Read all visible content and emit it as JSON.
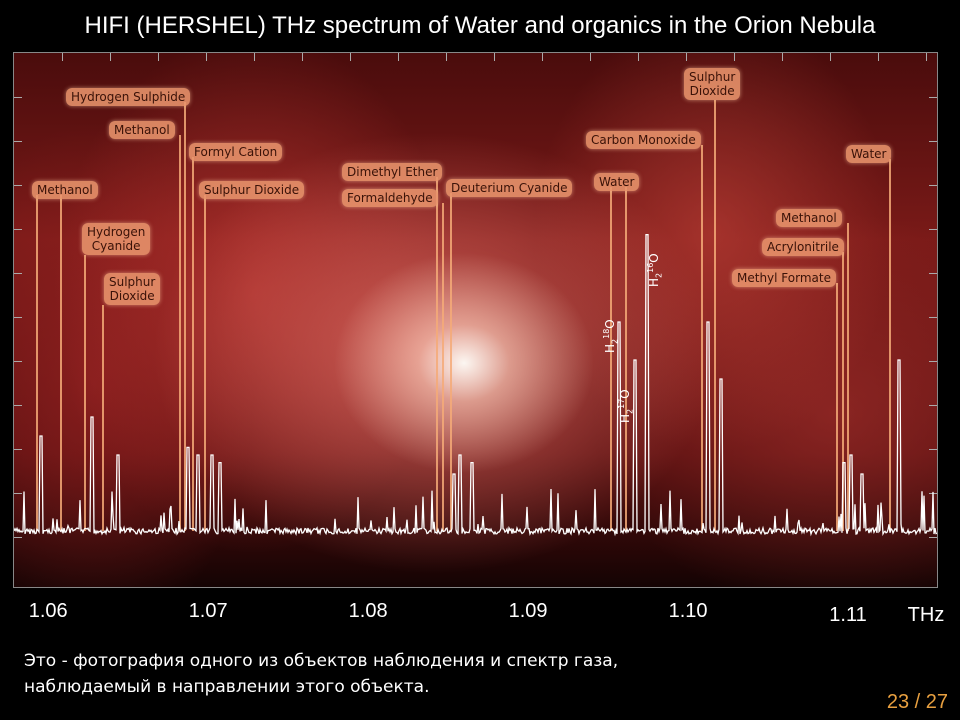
{
  "title": "HIFI (HERSHEL) THz spectrum of Water and organics in the Orion Nebula",
  "caption_line1": "Это - фотография одного из объектов наблюдения и спектр газа,",
  "caption_line2": "наблюдаемый в направлении этого объекта.",
  "page_number": "23 / 27",
  "chart_data": {
    "type": "line",
    "title": "HIFI (HERSHEL) THz spectrum of Water and organics in the Orion Nebula",
    "xlabel": "THz",
    "ylabel": "",
    "xlim": [
      1.0578,
      1.1155
    ],
    "x_ticks": [
      "1.06",
      "1.07",
      "1.08",
      "1.09",
      "1.10",
      "1.11"
    ],
    "x_tick_values": [
      1.06,
      1.07,
      1.08,
      1.09,
      1.1,
      1.11
    ],
    "unit": "THz",
    "lines": [
      {
        "label": "Methanol",
        "x": 1.0595,
        "rel_intensity": 0.25
      },
      {
        "label": "Hydrogen Cyanide",
        "x": 1.0627,
        "rel_intensity": 0.3
      },
      {
        "label": "Sulphur Dioxide",
        "x": 1.0643,
        "rel_intensity": 0.2
      },
      {
        "label": "Hydrogen Sulphide",
        "x": 1.0693,
        "rel_intensity": 0.2
      },
      {
        "label": "Methanol",
        "x": 1.0687,
        "rel_intensity": 0.22
      },
      {
        "label": "Formyl Cation",
        "x": 1.0702,
        "rel_intensity": 0.2
      },
      {
        "label": "Sulphur Dioxide",
        "x": 1.0707,
        "rel_intensity": 0.18
      },
      {
        "label": "Dimethyl Ether",
        "x": 1.0853,
        "rel_intensity": 0.15
      },
      {
        "label": "Formaldehyde",
        "x": 1.0857,
        "rel_intensity": 0.2
      },
      {
        "label": "Deuterium Cyanide",
        "x": 1.0864,
        "rel_intensity": 0.18
      },
      {
        "label": "Water",
        "x": 1.0956,
        "rel_intensity": 0.55,
        "species": "H2-18O"
      },
      {
        "label": "Water",
        "x": 1.0966,
        "rel_intensity": 0.45,
        "species": "H2-17O"
      },
      {
        "label": "Water",
        "x": 1.0974,
        "rel_intensity": 0.78,
        "species": "H2-16O"
      },
      {
        "label": "Carbon Monoxide",
        "x": 1.1012,
        "rel_intensity": 0.55
      },
      {
        "label": "Sulphur Dioxide",
        "x": 1.102,
        "rel_intensity": 0.4
      },
      {
        "label": "Methanol",
        "x": 1.1101,
        "rel_intensity": 0.2
      },
      {
        "label": "Acrylonitrile",
        "x": 1.1097,
        "rel_intensity": 0.18
      },
      {
        "label": "Methyl Formate",
        "x": 1.1108,
        "rel_intensity": 0.15
      },
      {
        "label": "Water",
        "x": 1.1131,
        "rel_intensity": 0.45
      }
    ]
  },
  "labels": [
    {
      "id": "methanol-1",
      "lines": [
        "Methanol"
      ]
    },
    {
      "id": "hydrogen-cyanide",
      "lines": [
        "Hydrogen",
        "Cyanide"
      ]
    },
    {
      "id": "sulphur-dioxide-1",
      "lines": [
        "Sulphur",
        "Dioxide"
      ]
    },
    {
      "id": "hydrogen-sulphide",
      "lines": [
        "Hydrogen Sulphide"
      ]
    },
    {
      "id": "methanol-2",
      "lines": [
        "Methanol"
      ]
    },
    {
      "id": "formyl-cation",
      "lines": [
        "Formyl Cation"
      ]
    },
    {
      "id": "sulphur-dioxide-2",
      "lines": [
        "Sulphur Dioxide"
      ]
    },
    {
      "id": "dimethyl-ether",
      "lines": [
        "Dimethyl Ether"
      ]
    },
    {
      "id": "formaldehyde",
      "lines": [
        "Formaldehyde"
      ]
    },
    {
      "id": "deuterium-cyanide",
      "lines": [
        "Deuterium Cyanide"
      ]
    },
    {
      "id": "water-1",
      "lines": [
        "Water"
      ]
    },
    {
      "id": "carbon-monoxide",
      "lines": [
        "Carbon Monoxide"
      ]
    },
    {
      "id": "sulphur-dioxide-3",
      "lines": [
        "Sulphur",
        "Dioxide"
      ]
    },
    {
      "id": "water-2",
      "lines": [
        "Water"
      ]
    },
    {
      "id": "methanol-3",
      "lines": [
        "Methanol"
      ]
    },
    {
      "id": "acrylonitrile",
      "lines": [
        "Acrylonitrile"
      ]
    },
    {
      "id": "methyl-formate",
      "lines": [
        "Methyl Formate"
      ]
    }
  ],
  "isotopologues": [
    {
      "id": "h2-18o",
      "base": "H",
      "sub": "2",
      "sup": "18",
      "tail": "O"
    },
    {
      "id": "h2-17o",
      "base": "H",
      "sub": "2",
      "sup": "17",
      "tail": "O"
    },
    {
      "id": "h2-16o",
      "base": "H",
      "sub": "2",
      "sup": "16",
      "tail": "O"
    }
  ],
  "colors": {
    "label_bg": "#e8946c",
    "spectrum": "#ffffff",
    "page_number": "#e8a040"
  }
}
